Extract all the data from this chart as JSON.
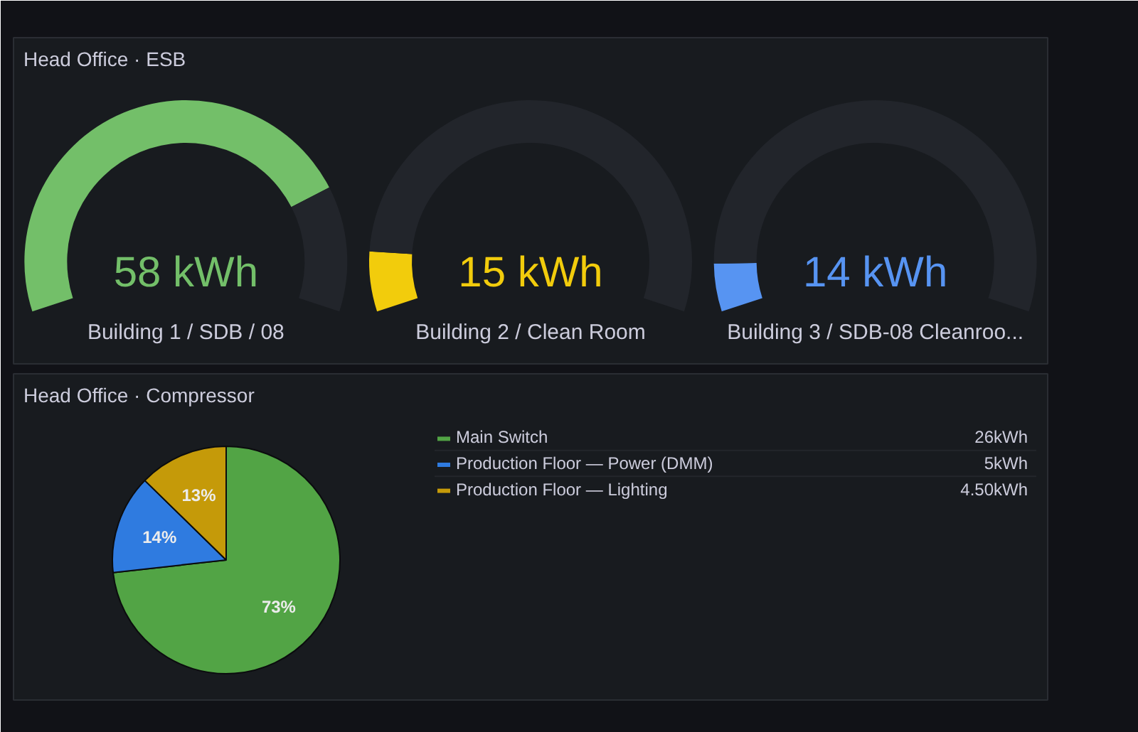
{
  "chart_data": [
    {
      "type": "donut",
      "title": "Head Office · ESB",
      "xlabel": "Building 1 / SDB / 08",
      "values": [
        79,
        21
      ],
      "colors": [
        "#73bf69",
        "#22252b"
      ],
      "annotations": [
        "58 kWh"
      ]
    },
    {
      "type": "donut",
      "xlabel": "Building 2 / Clean Room",
      "values": [
        10,
        90
      ],
      "colors": [
        "#f2cc0c",
        "#22252b"
      ],
      "annotations": [
        "15 kWh"
      ]
    },
    {
      "type": "donut",
      "xlabel": "Building 3 / SDB-08 Cleanroo...",
      "values": [
        8,
        92
      ],
      "colors": [
        "#5794f2",
        "#22252b"
      ],
      "annotations": [
        "14 kWh"
      ]
    },
    {
      "type": "pie",
      "title": "Head Office · Compressor",
      "categories": [
        "Main Switch",
        "Production Floor — Power (DMM)",
        "Production Floor — Lighting"
      ],
      "values": [
        26,
        5,
        4.5
      ],
      "colors": [
        "#52a445",
        "#2f7be0",
        "#c59a09"
      ],
      "value_labels": [
        "26kWh",
        "5kWh",
        "4.50kWh"
      ],
      "annotations": [
        "73%",
        "14%",
        "13%"
      ],
      "legend": "right"
    }
  ]
}
